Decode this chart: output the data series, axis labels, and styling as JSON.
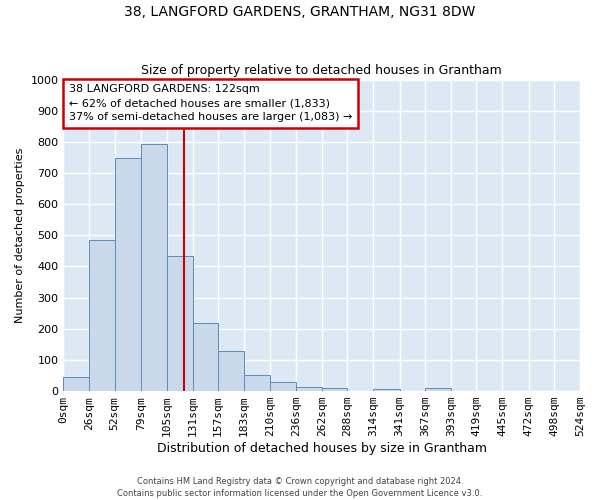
{
  "title": "38, LANGFORD GARDENS, GRANTHAM, NG31 8DW",
  "subtitle": "Size of property relative to detached houses in Grantham",
  "xlabel": "Distribution of detached houses by size in Grantham",
  "ylabel": "Number of detached properties",
  "bar_color": "#c9d9eb",
  "bar_edge_color": "#5b8db8",
  "background_color": "#dce9f5",
  "grid_color": "white",
  "bins": [
    0,
    26,
    52,
    79,
    105,
    131,
    157,
    183,
    210,
    236,
    262,
    288,
    314,
    341,
    367,
    393,
    419,
    445,
    472,
    498,
    524
  ],
  "bin_labels": [
    "0sqm",
    "26sqm",
    "52sqm",
    "79sqm",
    "105sqm",
    "131sqm",
    "157sqm",
    "183sqm",
    "210sqm",
    "236sqm",
    "262sqm",
    "288sqm",
    "314sqm",
    "341sqm",
    "367sqm",
    "393sqm",
    "419sqm",
    "445sqm",
    "472sqm",
    "498sqm",
    "524sqm"
  ],
  "values": [
    45,
    485,
    748,
    793,
    435,
    220,
    128,
    52,
    28,
    13,
    10,
    0,
    8,
    0,
    10,
    0,
    0,
    0,
    0,
    0
  ],
  "property_size": 122,
  "vline_color": "#cc0000",
  "annotation_line1": "38 LANGFORD GARDENS: 122sqm",
  "annotation_line2": "← 62% of detached houses are smaller (1,833)",
  "annotation_line3": "37% of semi-detached houses are larger (1,083) →",
  "annotation_box_color": "white",
  "annotation_box_edge_color": "#cc0000",
  "ylim": [
    0,
    1000
  ],
  "yticks": [
    0,
    100,
    200,
    300,
    400,
    500,
    600,
    700,
    800,
    900,
    1000
  ],
  "footer1": "Contains HM Land Registry data © Crown copyright and database right 2024.",
  "footer2": "Contains public sector information licensed under the Open Government Licence v3.0."
}
